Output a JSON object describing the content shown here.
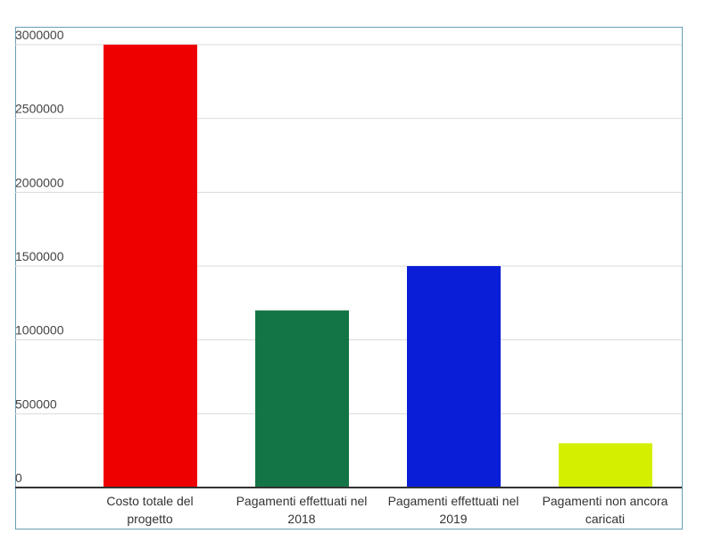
{
  "chart_data": {
    "type": "bar",
    "categories": [
      "Costo totale del progetto",
      "Pagamenti effettuati nel 2018",
      "Pagamenti effettuati nel 2019",
      "Pagamenti non ancora caricati"
    ],
    "values": [
      3000000,
      1200000,
      1500000,
      300000
    ],
    "colors": [
      "#ee0000",
      "#137545",
      "#0a1ed8",
      "#d4f000"
    ],
    "ylim": [
      0,
      3000000
    ],
    "yticks": [
      0,
      500000,
      1000000,
      1500000,
      2000000,
      2500000,
      3000000
    ],
    "grid": true
  }
}
